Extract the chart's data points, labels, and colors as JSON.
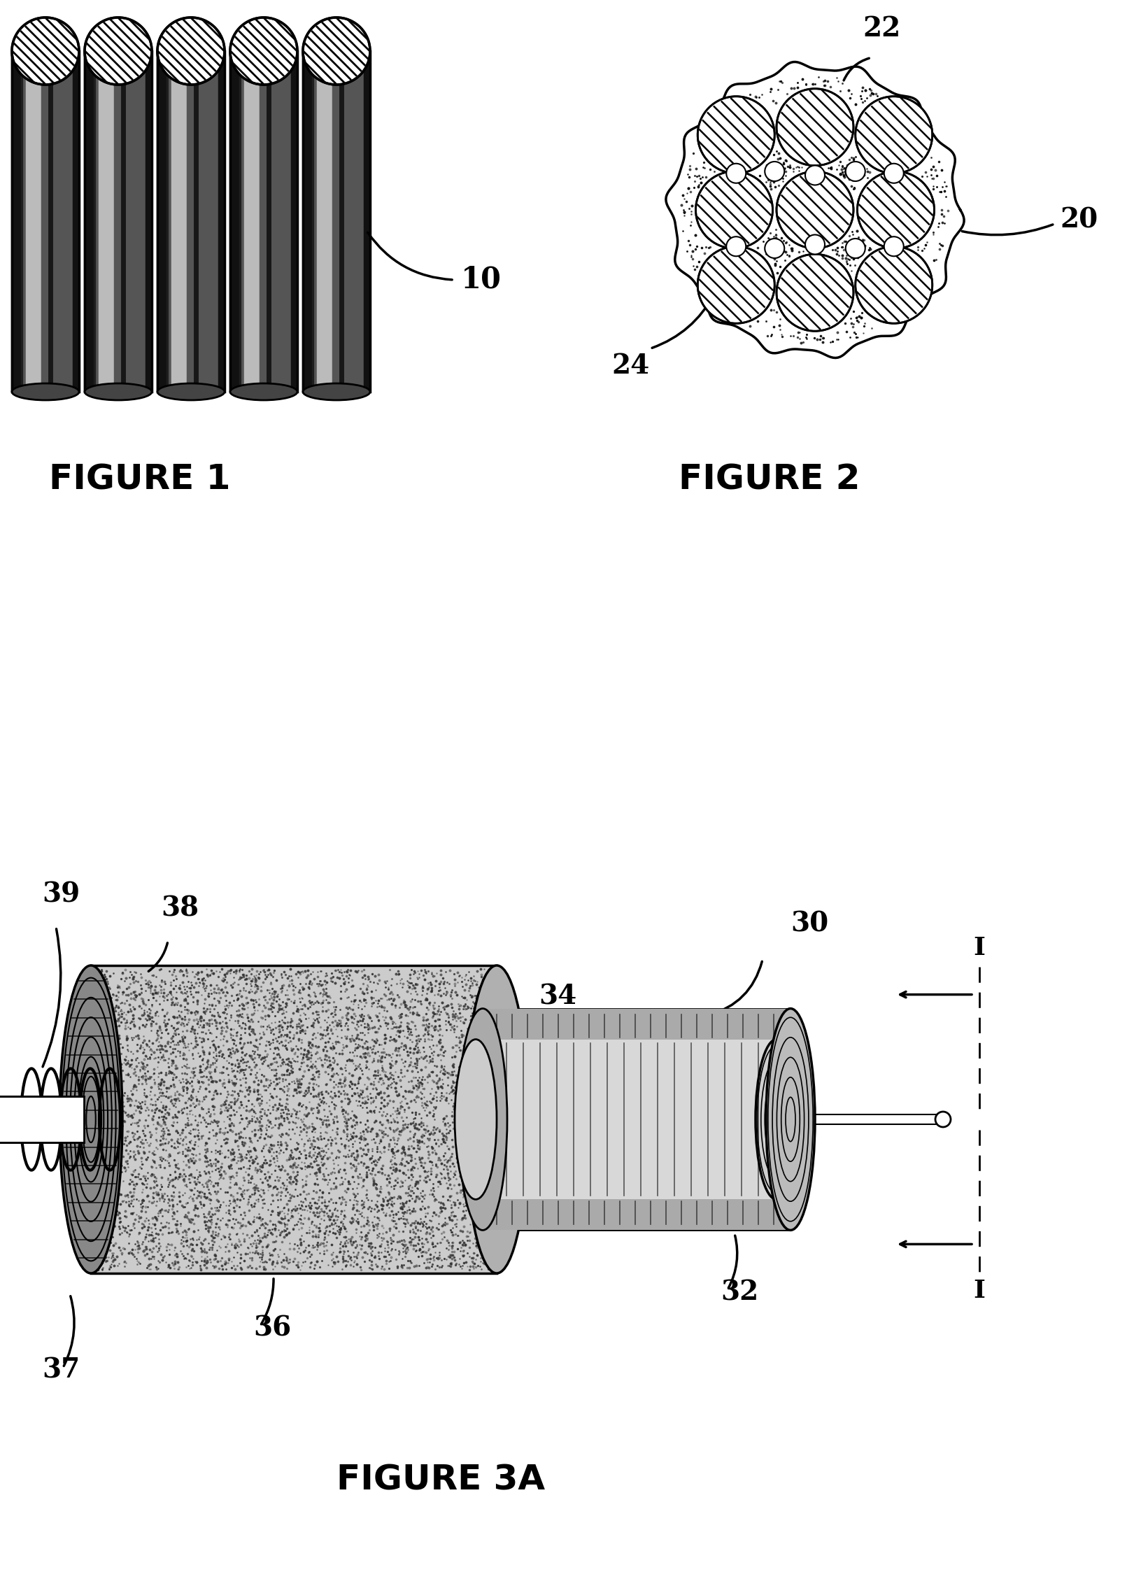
{
  "fig_width": 16.11,
  "fig_height": 22.47,
  "bg_color": "#ffffff",
  "fig1_label": "FIGURE 1",
  "fig2_label": "FIGURE 2",
  "fig3a_label": "FIGURE 3A",
  "label_10": "10",
  "label_20": "20",
  "label_22": "22",
  "label_24": "24",
  "label_30": "30",
  "label_32": "32",
  "label_34": "34",
  "label_36": "36",
  "label_37": "37",
  "label_38": "38",
  "label_39": "39",
  "label_I": "I"
}
